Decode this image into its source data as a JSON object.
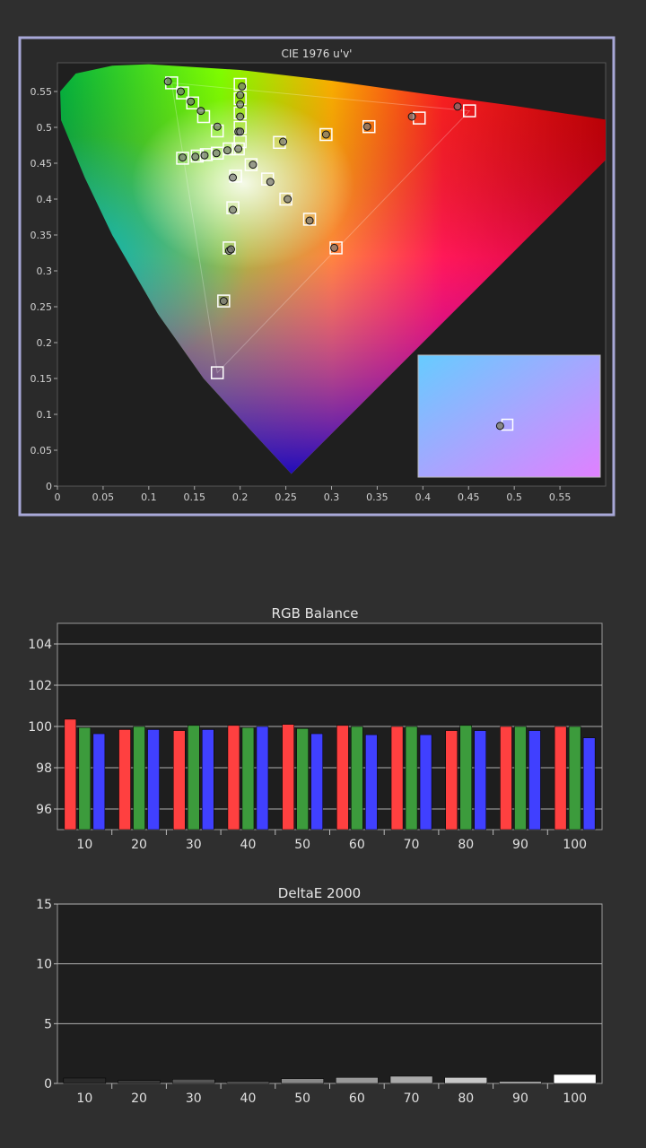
{
  "chart_data": [
    {
      "type": "scatter",
      "title": "CIE 1976 u'v'",
      "xlabel": "",
      "ylabel": "",
      "xlim": [
        0,
        0.6
      ],
      "ylim": [
        0,
        0.59
      ],
      "x_ticks": [
        "0",
        "0.05",
        "0.1",
        "0.15",
        "0.2",
        "0.25",
        "0.3",
        "0.35",
        "0.4",
        "0.45",
        "0.5",
        "0.55"
      ],
      "y_ticks": [
        "0",
        "0.05",
        "0.1",
        "0.15",
        "0.2",
        "0.25",
        "0.3",
        "0.35",
        "0.4",
        "0.45",
        "0.5",
        "0.55"
      ],
      "gamut_triangle": [
        [
          0.451,
          0.523
        ],
        [
          0.125,
          0.562
        ],
        [
          0.175,
          0.158
        ]
      ],
      "series": [
        {
          "marker": "square",
          "points": [
            [
              0.451,
              0.523
            ],
            [
              0.396,
              0.513
            ],
            [
              0.341,
              0.501
            ],
            [
              0.294,
              0.49
            ],
            [
              0.243,
              0.479
            ],
            [
              0.125,
              0.562
            ],
            [
              0.137,
              0.548
            ],
            [
              0.148,
              0.534
            ],
            [
              0.16,
              0.515
            ],
            [
              0.175,
              0.495
            ],
            [
              0.188,
              0.47
            ],
            [
              0.175,
              0.158
            ],
            [
              0.182,
              0.258
            ],
            [
              0.188,
              0.332
            ],
            [
              0.192,
              0.388
            ],
            [
              0.195,
              0.432
            ],
            [
              0.198,
              0.47
            ],
            [
              0.2,
              0.56
            ],
            [
              0.2,
              0.54
            ],
            [
              0.2,
              0.52
            ],
            [
              0.2,
              0.5
            ],
            [
              0.2,
              0.48
            ],
            [
              0.137,
              0.457
            ],
            [
              0.153,
              0.46
            ],
            [
              0.163,
              0.462
            ],
            [
              0.175,
              0.464
            ],
            [
              0.305,
              0.332
            ],
            [
              0.276,
              0.372
            ],
            [
              0.25,
              0.4
            ],
            [
              0.23,
              0.428
            ],
            [
              0.212,
              0.448
            ]
          ]
        },
        {
          "marker": "circle",
          "points": [
            [
              0.438,
              0.529
            ],
            [
              0.388,
              0.515
            ],
            [
              0.339,
              0.501
            ],
            [
              0.294,
              0.49
            ],
            [
              0.247,
              0.48
            ],
            [
              0.121,
              0.564
            ],
            [
              0.135,
              0.55
            ],
            [
              0.146,
              0.536
            ],
            [
              0.157,
              0.523
            ],
            [
              0.175,
              0.501
            ],
            [
              0.198,
              0.494
            ],
            [
              0.188,
              0.328
            ],
            [
              0.182,
              0.258
            ],
            [
              0.19,
              0.33
            ],
            [
              0.192,
              0.385
            ],
            [
              0.192,
              0.43
            ],
            [
              0.198,
              0.47
            ],
            [
              0.202,
              0.557
            ],
            [
              0.2,
              0.545
            ],
            [
              0.2,
              0.532
            ],
            [
              0.2,
              0.515
            ],
            [
              0.2,
              0.494
            ],
            [
              0.137,
              0.458
            ],
            [
              0.151,
              0.459
            ],
            [
              0.161,
              0.461
            ],
            [
              0.174,
              0.464
            ],
            [
              0.186,
              0.468
            ],
            [
              0.303,
              0.332
            ],
            [
              0.276,
              0.37
            ],
            [
              0.252,
              0.4
            ],
            [
              0.233,
              0.424
            ],
            [
              0.214,
              0.448
            ]
          ]
        }
      ],
      "inset_point": {
        "square": [
          0.49,
          0.57
        ],
        "circle": [
          0.45,
          0.58
        ]
      },
      "colors": {
        "frame": "#a8a8d8",
        "plot_bg": "#2b2b2b"
      }
    },
    {
      "type": "bar",
      "title": "RGB Balance",
      "xlabel": "",
      "ylabel": "",
      "categories": [
        "10",
        "20",
        "30",
        "40",
        "50",
        "60",
        "70",
        "80",
        "90",
        "100"
      ],
      "ylim": [
        95,
        105
      ],
      "y_ticks": [
        "96",
        "98",
        "100",
        "102",
        "104"
      ],
      "series": [
        {
          "color": "#ff4040",
          "values": [
            100.35,
            99.85,
            99.8,
            100.05,
            100.1,
            100.05,
            100.0,
            99.8,
            100.0,
            100.0
          ]
        },
        {
          "color": "#3c9b3c",
          "values": [
            99.95,
            100.0,
            100.05,
            99.95,
            99.9,
            100.0,
            100.0,
            100.05,
            100.0,
            100.0
          ]
        },
        {
          "color": "#4040ff",
          "values": [
            99.65,
            99.85,
            99.85,
            100.0,
            99.65,
            99.6,
            99.6,
            99.8,
            99.8,
            99.45
          ]
        }
      ]
    },
    {
      "type": "bar",
      "title": "DeltaE 2000",
      "xlabel": "",
      "ylabel": "",
      "categories": [
        "10",
        "20",
        "30",
        "40",
        "50",
        "60",
        "70",
        "80",
        "90",
        "100"
      ],
      "ylim": [
        0,
        15
      ],
      "y_ticks": [
        "0",
        "5",
        "10",
        "15"
      ],
      "values": [
        0.45,
        0.25,
        0.35,
        0.15,
        0.4,
        0.5,
        0.6,
        0.5,
        0.15,
        0.75
      ],
      "colors": [
        "#2a2a2a",
        "#3a3a3a",
        "#555555",
        "#666666",
        "#888888",
        "#999999",
        "#aaaaaa",
        "#c8c8c8",
        "#d0d0d0",
        "#ffffff"
      ]
    }
  ]
}
